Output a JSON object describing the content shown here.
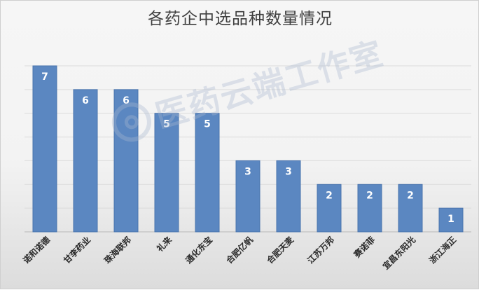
{
  "chart_data": {
    "type": "bar",
    "title": "各药企中选品种数量情况",
    "xlabel": "",
    "ylabel": "",
    "categories": [
      "诺和诺德",
      "甘李药业",
      "珠海联邦",
      "礼来",
      "通化东宝",
      "合肥亿帆",
      "合肥天麦",
      "江苏万邦",
      "赛诺菲",
      "宜昌东阳光",
      "浙江海正"
    ],
    "values": [
      7,
      6,
      6,
      5,
      5,
      3,
      3,
      2,
      2,
      2,
      1
    ],
    "ylim": [
      0,
      7
    ],
    "grid": true,
    "legend": "none",
    "colors": {
      "bar": "#5b87c1",
      "bar_edge": "#4a74ad",
      "label": "#ffffff",
      "axis_text": "#2b2b2b",
      "grid": "#dcdcdc"
    }
  },
  "watermark": {
    "text": "医药云端工作室"
  }
}
